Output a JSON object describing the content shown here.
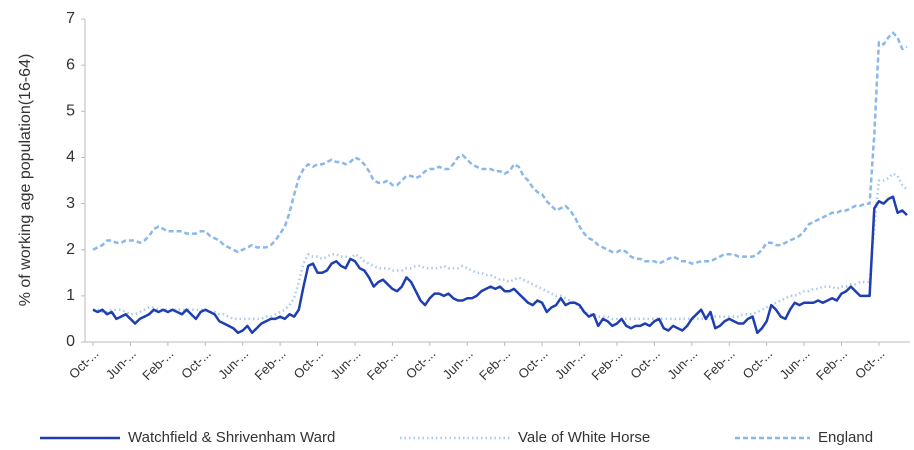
{
  "chart_data": {
    "type": "line",
    "y_label": "% of working age population(16-64)",
    "categories": [
      "Oct-...",
      null,
      null,
      null,
      null,
      null,
      null,
      null,
      "Jun-...",
      null,
      null,
      null,
      null,
      null,
      null,
      null,
      "Feb-...",
      null,
      null,
      null,
      null,
      null,
      null,
      null,
      "Oct-...",
      null,
      null,
      null,
      null,
      null,
      null,
      null,
      "Jun-...",
      null,
      null,
      null,
      null,
      null,
      null,
      null,
      "Feb-...",
      null,
      null,
      null,
      null,
      null,
      null,
      null,
      "Oct-...",
      null,
      null,
      null,
      null,
      null,
      null,
      null,
      "Jun-...",
      null,
      null,
      null,
      null,
      null,
      null,
      null,
      "Feb-...",
      null,
      null,
      null,
      null,
      null,
      null,
      null,
      "Oct-...",
      null,
      null,
      null,
      null,
      null,
      null,
      null,
      "Jun-...",
      null,
      null,
      null,
      null,
      null,
      null,
      null,
      "Feb-...",
      null,
      null,
      null,
      null,
      null,
      null,
      null,
      "Oct-...",
      null,
      null,
      null,
      null,
      null,
      null,
      null,
      "Jun-...",
      null,
      null,
      null,
      null,
      null,
      null,
      null,
      "Feb-...",
      null,
      null,
      null,
      null,
      null,
      null,
      null,
      "Oct-...",
      null,
      null,
      null,
      null,
      null,
      null,
      null,
      "Jun-...",
      null,
      null,
      null,
      null,
      null,
      null,
      null,
      "Feb-...",
      null,
      null,
      null,
      null,
      null,
      null,
      null,
      "Oct-...",
      null,
      null,
      null,
      null,
      null,
      null,
      null,
      "Jun-...",
      null,
      null,
      null,
      null,
      null,
      null,
      null,
      "Feb-...",
      null,
      null,
      null,
      null,
      null,
      null,
      null,
      "Oct-...",
      null,
      null,
      null,
      null,
      null,
      null
    ],
    "series": [
      {
        "name": "Watchfield & Shrivenham Ward",
        "color": "#1f3fb0",
        "style": "solid",
        "values": [
          0.7,
          0.65,
          0.7,
          0.6,
          0.65,
          0.5,
          0.55,
          0.6,
          0.5,
          0.4,
          0.5,
          0.55,
          0.6,
          0.7,
          0.65,
          0.7,
          0.65,
          0.7,
          0.65,
          0.6,
          0.7,
          0.6,
          0.5,
          0.65,
          0.7,
          0.65,
          0.6,
          0.45,
          0.4,
          0.35,
          0.3,
          0.2,
          0.25,
          0.35,
          0.2,
          0.3,
          0.4,
          0.45,
          0.5,
          0.5,
          0.55,
          0.5,
          0.6,
          0.55,
          0.7,
          1.2,
          1.65,
          1.7,
          1.5,
          1.5,
          1.55,
          1.7,
          1.75,
          1.65,
          1.6,
          1.8,
          1.75,
          1.6,
          1.55,
          1.4,
          1.2,
          1.3,
          1.35,
          1.25,
          1.15,
          1.1,
          1.2,
          1.4,
          1.3,
          1.1,
          0.9,
          0.8,
          0.95,
          1.05,
          1.05,
          1.0,
          1.05,
          0.95,
          0.9,
          0.9,
          0.95,
          0.95,
          1.0,
          1.1,
          1.15,
          1.2,
          1.15,
          1.2,
          1.1,
          1.1,
          1.15,
          1.05,
          0.95,
          0.85,
          0.8,
          0.9,
          0.85,
          0.65,
          0.75,
          0.8,
          0.95,
          0.8,
          0.85,
          0.85,
          0.8,
          0.65,
          0.55,
          0.6,
          0.35,
          0.5,
          0.45,
          0.35,
          0.4,
          0.5,
          0.35,
          0.3,
          0.35,
          0.35,
          0.4,
          0.35,
          0.45,
          0.5,
          0.3,
          0.25,
          0.35,
          0.3,
          0.25,
          0.35,
          0.5,
          0.6,
          0.7,
          0.5,
          0.65,
          0.3,
          0.35,
          0.45,
          0.5,
          0.45,
          0.4,
          0.4,
          0.5,
          0.55,
          0.2,
          0.3,
          0.45,
          0.8,
          0.7,
          0.55,
          0.5,
          0.7,
          0.85,
          0.8,
          0.85,
          0.85,
          0.85,
          0.9,
          0.85,
          0.9,
          0.95,
          0.9,
          1.05,
          1.1,
          1.2,
          1.1,
          1.0,
          1.0,
          1.0,
          2.9,
          3.05,
          3.0,
          3.1,
          3.15,
          2.8,
          2.85,
          2.75
        ]
      },
      {
        "name": "Vale of White Horse",
        "color": "#a9c9ec",
        "style": "dotted",
        "values": [
          0.7,
          0.7,
          0.65,
          0.65,
          0.7,
          0.7,
          0.7,
          0.65,
          0.6,
          0.6,
          0.65,
          0.7,
          0.75,
          0.75,
          0.7,
          0.7,
          0.7,
          0.7,
          0.7,
          0.7,
          0.7,
          0.7,
          0.7,
          0.7,
          0.7,
          0.65,
          0.65,
          0.6,
          0.6,
          0.55,
          0.5,
          0.5,
          0.5,
          0.5,
          0.5,
          0.5,
          0.5,
          0.55,
          0.55,
          0.6,
          0.65,
          0.7,
          0.8,
          0.95,
          1.3,
          1.7,
          1.9,
          1.85,
          1.85,
          1.8,
          1.85,
          1.9,
          1.9,
          1.85,
          1.85,
          1.8,
          1.9,
          1.85,
          1.75,
          1.7,
          1.65,
          1.6,
          1.6,
          1.6,
          1.55,
          1.55,
          1.55,
          1.6,
          1.6,
          1.65,
          1.65,
          1.6,
          1.6,
          1.6,
          1.6,
          1.65,
          1.6,
          1.6,
          1.6,
          1.65,
          1.6,
          1.55,
          1.5,
          1.5,
          1.45,
          1.45,
          1.4,
          1.35,
          1.35,
          1.3,
          1.35,
          1.4,
          1.35,
          1.3,
          1.25,
          1.2,
          1.15,
          1.1,
          1.05,
          1.0,
          1.0,
          0.95,
          0.9,
          0.85,
          0.75,
          0.65,
          0.6,
          0.6,
          0.55,
          0.55,
          0.55,
          0.5,
          0.5,
          0.5,
          0.5,
          0.5,
          0.5,
          0.5,
          0.5,
          0.5,
          0.5,
          0.5,
          0.5,
          0.5,
          0.5,
          0.5,
          0.5,
          0.5,
          0.5,
          0.5,
          0.5,
          0.5,
          0.5,
          0.55,
          0.55,
          0.55,
          0.55,
          0.55,
          0.55,
          0.6,
          0.6,
          0.6,
          0.65,
          0.7,
          0.75,
          0.8,
          0.85,
          0.9,
          0.95,
          1.0,
          1.0,
          1.05,
          1.1,
          1.1,
          1.15,
          1.15,
          1.2,
          1.2,
          1.2,
          1.15,
          1.2,
          1.2,
          1.25,
          1.25,
          1.3,
          1.3,
          1.3,
          2.5,
          3.5,
          3.5,
          3.55,
          3.65,
          3.6,
          3.4,
          3.3
        ]
      },
      {
        "name": "England",
        "color": "#8ab8ea",
        "style": "dashed",
        "values": [
          2.0,
          2.05,
          2.1,
          2.2,
          2.2,
          2.15,
          2.15,
          2.2,
          2.2,
          2.2,
          2.15,
          2.2,
          2.3,
          2.45,
          2.5,
          2.45,
          2.4,
          2.4,
          2.4,
          2.4,
          2.35,
          2.35,
          2.35,
          2.4,
          2.4,
          2.3,
          2.25,
          2.2,
          2.1,
          2.05,
          2.0,
          1.95,
          2.0,
          2.05,
          2.1,
          2.05,
          2.05,
          2.05,
          2.1,
          2.2,
          2.35,
          2.5,
          2.8,
          3.2,
          3.55,
          3.75,
          3.85,
          3.8,
          3.85,
          3.85,
          3.9,
          3.95,
          3.9,
          3.9,
          3.85,
          3.9,
          4.0,
          3.95,
          3.85,
          3.7,
          3.5,
          3.45,
          3.45,
          3.5,
          3.4,
          3.4,
          3.5,
          3.6,
          3.6,
          3.55,
          3.6,
          3.7,
          3.75,
          3.75,
          3.8,
          3.75,
          3.75,
          3.85,
          4.0,
          4.05,
          3.95,
          3.85,
          3.8,
          3.75,
          3.75,
          3.75,
          3.7,
          3.7,
          3.65,
          3.7,
          3.85,
          3.8,
          3.6,
          3.5,
          3.35,
          3.25,
          3.2,
          3.05,
          2.95,
          2.85,
          2.9,
          2.95,
          2.85,
          2.7,
          2.5,
          2.35,
          2.25,
          2.2,
          2.1,
          2.05,
          2.0,
          1.95,
          1.95,
          2.0,
          1.95,
          1.85,
          1.8,
          1.8,
          1.75,
          1.75,
          1.75,
          1.7,
          1.75,
          1.8,
          1.85,
          1.8,
          1.75,
          1.75,
          1.7,
          1.72,
          1.75,
          1.75,
          1.75,
          1.8,
          1.85,
          1.9,
          1.9,
          1.9,
          1.85,
          1.85,
          1.85,
          1.85,
          1.9,
          2.0,
          2.15,
          2.15,
          2.1,
          2.1,
          2.15,
          2.2,
          2.25,
          2.3,
          2.4,
          2.55,
          2.6,
          2.65,
          2.7,
          2.75,
          2.8,
          2.8,
          2.85,
          2.85,
          2.9,
          2.95,
          2.95,
          3.0,
          3.0,
          4.5,
          6.5,
          6.45,
          6.6,
          6.7,
          6.6,
          6.35,
          6.4
        ]
      }
    ],
    "ylim": [
      0,
      7
    ],
    "yticks": [
      0,
      1,
      2,
      3,
      4,
      5,
      6,
      7
    ],
    "legend": "bottom"
  }
}
